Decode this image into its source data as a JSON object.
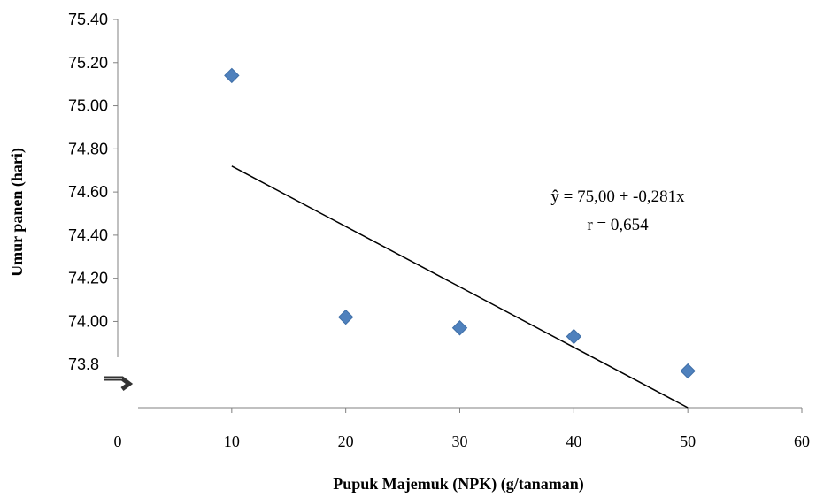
{
  "chart_data": {
    "type": "scatter",
    "xlabel": "Pupuk Majemuk (NPK) (g/tanaman)",
    "ylabel": "Umur panen (hari)",
    "x_ticks": [
      "0",
      "10",
      "20",
      "30",
      "40",
      "50",
      "60"
    ],
    "y_ticks": [
      "73.80",
      "74.00",
      "74.20",
      "74.40",
      "74.60",
      "74.80",
      "75.00",
      "75.20",
      "75.40"
    ],
    "xlim": [
      0,
      60
    ],
    "ylim": [
      73.6,
      75.4
    ],
    "axis_break": true,
    "grid": false,
    "marker": "diamond",
    "color": "#4f81bd",
    "points": [
      {
        "x": 10,
        "y": 75.14
      },
      {
        "x": 20,
        "y": 74.02
      },
      {
        "x": 30,
        "y": 73.97
      },
      {
        "x": 40,
        "y": 73.93
      },
      {
        "x": 50,
        "y": 73.77
      }
    ],
    "trendline": {
      "x": [
        10,
        50
      ],
      "y": [
        74.72,
        73.6
      ]
    },
    "annotations": [
      "ŷ = 75,00 + -0,281x",
      "r = 0,654"
    ]
  }
}
